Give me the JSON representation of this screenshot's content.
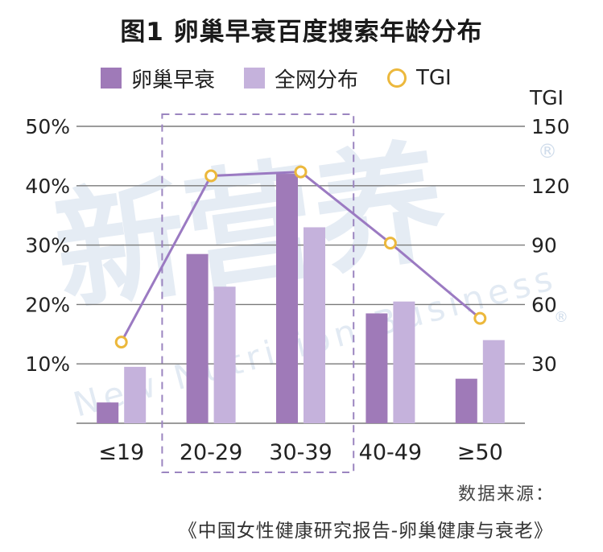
{
  "title": "图1 卵巢早衰百度搜索年龄分布",
  "legend": {
    "series1": "卵巢早衰",
    "series2": "全网分布",
    "series3": "TGI"
  },
  "colors": {
    "series1": "#9f7ab8",
    "series2": "#c5b2dc",
    "tgi_line": "#9b7ac2",
    "tgi_marker": "#ecb83c",
    "grid": "#7a7a7a",
    "highlight_box": "#9b85c0"
  },
  "watermark": {
    "main": "新营养",
    "sub": "New Nutrition Business",
    "reg": "®"
  },
  "chart_data": {
    "type": "bar",
    "categories": [
      "≤19",
      "20-29",
      "30-39",
      "40-49",
      "≥50"
    ],
    "series": [
      {
        "name": "卵巢早衰",
        "axis": "left",
        "values": [
          3.5,
          28.5,
          42,
          18.5,
          7.5
        ]
      },
      {
        "name": "全网分布",
        "axis": "left",
        "values": [
          9.5,
          23,
          33,
          20.5,
          14
        ]
      },
      {
        "name": "TGI",
        "type": "line",
        "axis": "right",
        "values": [
          41,
          125,
          127,
          91,
          53
        ]
      }
    ],
    "y_left": {
      "ylim": [
        0,
        50
      ],
      "ticks": [
        "10%",
        "20%",
        "30%",
        "40%",
        "50%"
      ]
    },
    "y_right": {
      "label": "TGI",
      "ylim": [
        0,
        150
      ],
      "ticks": [
        "30",
        "60",
        "90",
        "120",
        "150"
      ]
    },
    "highlight_categories": [
      "20-29",
      "30-39"
    ],
    "grid": true,
    "legend_position": "top"
  },
  "source": {
    "label": "数据来源：",
    "text": "《中国女性健康研究报告-卵巢健康与衰老》"
  }
}
